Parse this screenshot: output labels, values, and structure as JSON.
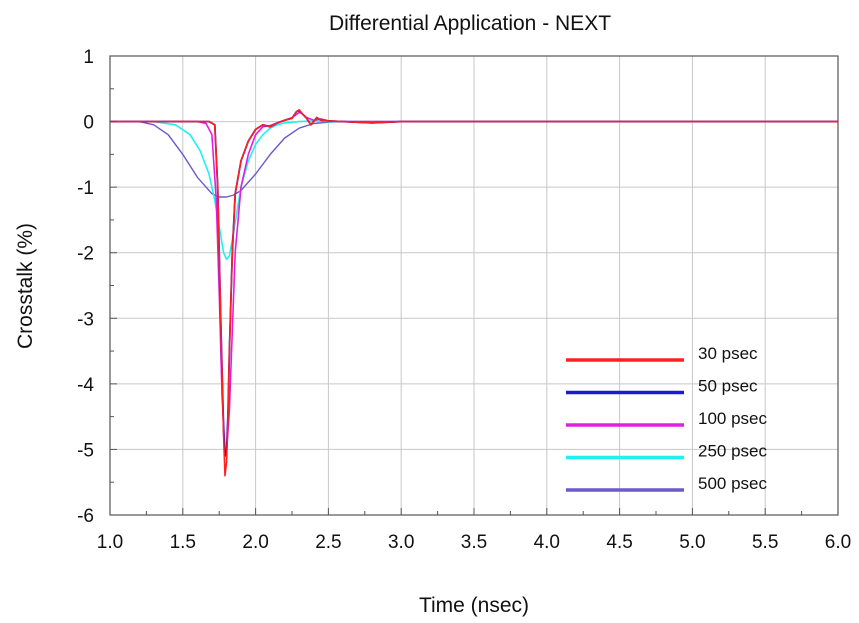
{
  "chart_data": {
    "type": "line",
    "title": "Differential Application - NEXT",
    "xlabel": "Time (nsec)",
    "ylabel": "Crosstalk (%)",
    "xlim": [
      1.0,
      6.0
    ],
    "ylim": [
      -6,
      1
    ],
    "x_ticks": [
      "1.0",
      "1.5",
      "2.0",
      "2.5",
      "3.0",
      "3.5",
      "4.0",
      "4.5",
      "5.0",
      "5.5",
      "6.0"
    ],
    "y_ticks": [
      "1",
      "0",
      "-1",
      "-2",
      "-3",
      "-4",
      "-5",
      "-6"
    ],
    "grid": true,
    "legend_position": "bottom-right",
    "series": [
      {
        "name": "30 psec",
        "color": "#ff2020",
        "x": [
          1.0,
          1.55,
          1.68,
          1.72,
          1.74,
          1.76,
          1.78,
          1.79,
          1.8,
          1.81,
          1.82,
          1.84,
          1.86,
          1.9,
          1.95,
          2.0,
          2.05,
          2.1,
          2.15,
          2.2,
          2.25,
          2.28,
          2.3,
          2.32,
          2.35,
          2.38,
          2.42,
          2.45,
          2.5,
          2.6,
          2.8,
          3.0,
          6.0
        ],
        "y": [
          0,
          0,
          0,
          -0.05,
          -1.0,
          -3.0,
          -4.8,
          -5.4,
          -5.2,
          -4.6,
          -3.5,
          -2.0,
          -1.1,
          -0.6,
          -0.3,
          -0.12,
          -0.05,
          -0.08,
          -0.02,
          0.02,
          0.05,
          0.15,
          0.18,
          0.12,
          0.05,
          -0.05,
          0.06,
          0.02,
          0.01,
          0.0,
          -0.02,
          0.0,
          0
        ]
      },
      {
        "name": "50 psec",
        "color": "#1a1ad0",
        "x": [
          1.0,
          1.55,
          1.68,
          1.72,
          1.74,
          1.76,
          1.78,
          1.79,
          1.8,
          1.81,
          1.82,
          1.84,
          1.86,
          1.9,
          1.95,
          2.0,
          2.05,
          2.1,
          2.15,
          2.2,
          2.25,
          2.28,
          2.3,
          2.32,
          2.35,
          2.38,
          2.42,
          2.45,
          2.5,
          2.6,
          2.8,
          3.0,
          6.0
        ],
        "y": [
          0,
          0,
          0,
          -0.05,
          -1.0,
          -3.0,
          -4.7,
          -5.1,
          -5.05,
          -4.5,
          -3.5,
          -2.0,
          -1.1,
          -0.6,
          -0.3,
          -0.12,
          -0.05,
          -0.08,
          -0.02,
          0.02,
          0.05,
          0.15,
          0.17,
          0.12,
          0.05,
          -0.05,
          0.06,
          0.02,
          0.01,
          0.0,
          -0.02,
          0.0,
          0
        ]
      },
      {
        "name": "100 psec",
        "color": "#e020e0",
        "x": [
          1.0,
          1.6,
          1.66,
          1.7,
          1.73,
          1.75,
          1.77,
          1.79,
          1.8,
          1.82,
          1.84,
          1.86,
          1.9,
          1.95,
          2.0,
          2.05,
          2.1,
          2.15,
          2.2,
          2.25,
          2.3,
          2.32,
          2.35,
          2.4,
          2.45,
          2.5,
          2.6,
          3.0,
          6.0
        ],
        "y": [
          0,
          0,
          -0.03,
          -0.2,
          -1.2,
          -2.6,
          -4.2,
          -5.0,
          -5.05,
          -4.4,
          -3.2,
          -2.0,
          -1.0,
          -0.5,
          -0.2,
          -0.08,
          -0.06,
          -0.02,
          0.02,
          0.06,
          0.14,
          0.12,
          0.06,
          0.02,
          0.04,
          0.01,
          0.0,
          0.0,
          0
        ]
      },
      {
        "name": "250 psec",
        "color": "#20f0f0",
        "x": [
          1.0,
          1.3,
          1.45,
          1.55,
          1.62,
          1.68,
          1.72,
          1.75,
          1.78,
          1.8,
          1.82,
          1.84,
          1.87,
          1.9,
          1.95,
          2.0,
          2.05,
          2.1,
          2.15,
          2.2,
          2.3,
          2.4,
          2.5,
          3.0,
          6.0
        ],
        "y": [
          0,
          0,
          -0.05,
          -0.2,
          -0.45,
          -0.8,
          -1.2,
          -1.6,
          -2.0,
          -2.1,
          -2.05,
          -1.8,
          -1.4,
          -1.0,
          -0.6,
          -0.35,
          -0.2,
          -0.1,
          -0.05,
          -0.02,
          0.0,
          0.01,
          0.0,
          0.0,
          0
        ]
      },
      {
        "name": "500 psec",
        "color": "#6a5acd",
        "x": [
          1.0,
          1.2,
          1.3,
          1.4,
          1.5,
          1.6,
          1.7,
          1.75,
          1.8,
          1.85,
          1.9,
          2.0,
          2.1,
          2.2,
          2.3,
          2.4,
          2.5,
          2.6,
          2.8,
          3.0,
          6.0
        ],
        "y": [
          0,
          0,
          -0.05,
          -0.2,
          -0.5,
          -0.85,
          -1.1,
          -1.15,
          -1.15,
          -1.12,
          -1.05,
          -0.8,
          -0.5,
          -0.25,
          -0.1,
          -0.03,
          -0.01,
          0.0,
          0.0,
          0.0,
          0
        ]
      }
    ]
  }
}
